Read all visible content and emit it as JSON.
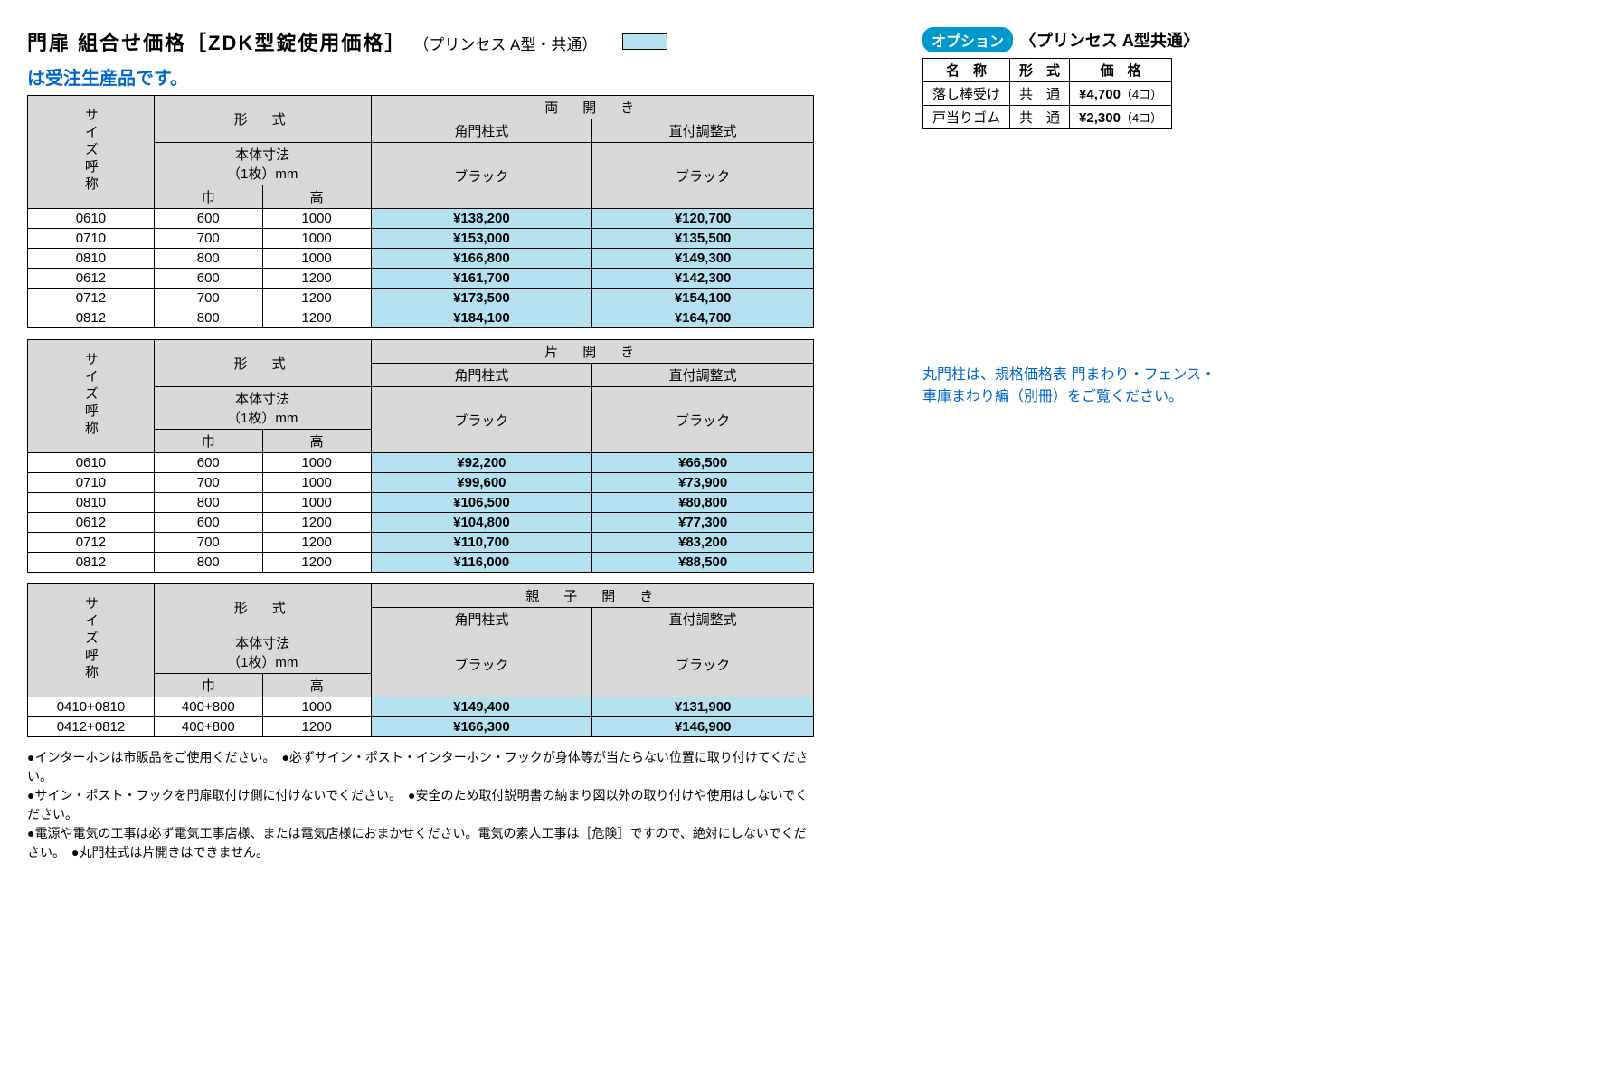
{
  "colors": {
    "highlight_bg": "#b4e0f0",
    "header_bg": "#d8d8d8",
    "link_blue": "#0066cc",
    "badge_bg": "#0099cc",
    "border": "#000000"
  },
  "title": {
    "main": "門扉 組合せ価格［ZDK型錠使用価格］",
    "sub": "（プリンセス A型・共通）",
    "notice": "は受注生産品です。"
  },
  "headers": {
    "size_label": "サイズ呼称",
    "format": "形　式",
    "body_dim": "本体寸法",
    "body_dim_unit": "（1枚）mm",
    "width": "巾",
    "height": "高",
    "col_a": "角門柱式",
    "col_b": "直付調整式",
    "color_black": "ブラック"
  },
  "tables": [
    {
      "group_title": "両　開　き",
      "rows": [
        {
          "size": "0610",
          "w": "600",
          "h": "1000",
          "a": "¥138,200",
          "b": "¥120,700"
        },
        {
          "size": "0710",
          "w": "700",
          "h": "1000",
          "a": "¥153,000",
          "b": "¥135,500"
        },
        {
          "size": "0810",
          "w": "800",
          "h": "1000",
          "a": "¥166,800",
          "b": "¥149,300"
        },
        {
          "size": "0612",
          "w": "600",
          "h": "1200",
          "a": "¥161,700",
          "b": "¥142,300"
        },
        {
          "size": "0712",
          "w": "700",
          "h": "1200",
          "a": "¥173,500",
          "b": "¥154,100"
        },
        {
          "size": "0812",
          "w": "800",
          "h": "1200",
          "a": "¥184,100",
          "b": "¥164,700"
        }
      ]
    },
    {
      "group_title": "片　開　き",
      "rows": [
        {
          "size": "0610",
          "w": "600",
          "h": "1000",
          "a": "¥92,200",
          "b": "¥66,500"
        },
        {
          "size": "0710",
          "w": "700",
          "h": "1000",
          "a": "¥99,600",
          "b": "¥73,900"
        },
        {
          "size": "0810",
          "w": "800",
          "h": "1000",
          "a": "¥106,500",
          "b": "¥80,800"
        },
        {
          "size": "0612",
          "w": "600",
          "h": "1200",
          "a": "¥104,800",
          "b": "¥77,300"
        },
        {
          "size": "0712",
          "w": "700",
          "h": "1200",
          "a": "¥110,700",
          "b": "¥83,200"
        },
        {
          "size": "0812",
          "w": "800",
          "h": "1200",
          "a": "¥116,000",
          "b": "¥88,500"
        }
      ]
    },
    {
      "group_title": "親　子　開　き",
      "rows": [
        {
          "size": "0410+0810",
          "w": "400+800",
          "h": "1000",
          "a": "¥149,400",
          "b": "¥131,900"
        },
        {
          "size": "0412+0812",
          "w": "400+800",
          "h": "1200",
          "a": "¥166,300",
          "b": "¥146,900"
        }
      ]
    }
  ],
  "option": {
    "badge": "オプション",
    "title": "〈プリンセス A型共通〉",
    "columns": {
      "name": "名　称",
      "format": "形　式",
      "price": "価　格"
    },
    "rows": [
      {
        "name": "落し棒受け",
        "format": "共　通",
        "price": "¥4,700",
        "note": "（4コ）"
      },
      {
        "name": "戸当りゴム",
        "format": "共　通",
        "price": "¥2,300",
        "note": "（4コ）"
      }
    ]
  },
  "blue_note": "丸門柱は、規格価格表 門まわり・フェンス・\n車庫まわり編（別冊）をご覧ください。",
  "footnotes": [
    "インターホンは市販品をご使用ください。　●必ずサイン・ポスト・インターホン・フックが身体等が当たらない位置に取り付けてください。",
    "サイン・ポスト・フックを門扉取付け側に付けないでください。　●安全のため取付説明書の納まり図以外の取り付けや使用はしないでください。",
    "電源や電気の工事は必ず電気工事店様、または電気店様におまかせください。電気の素人工事は［危険］ですので、絶対にしないでください。　●丸門柱式は片開きはできません。"
  ]
}
